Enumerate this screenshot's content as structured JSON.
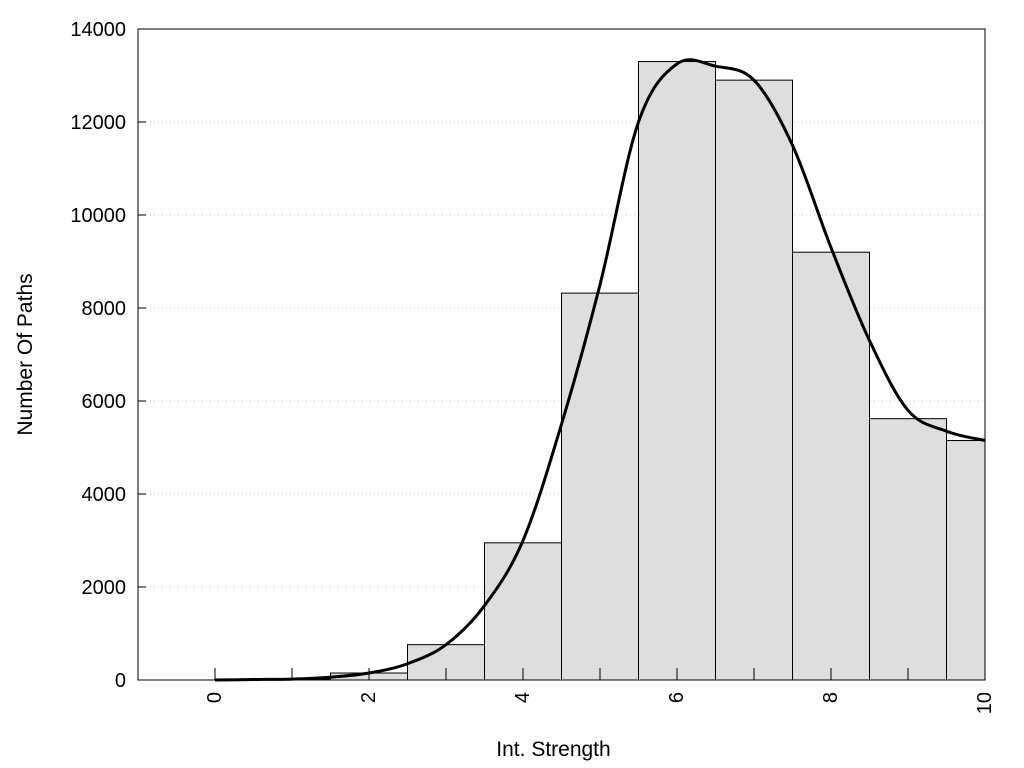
{
  "chart_data": {
    "type": "bar",
    "title": "",
    "xlabel": "Int. Strength",
    "ylabel": "Number Of Paths",
    "xlim": [
      -1,
      10
    ],
    "ylim": [
      0,
      14000
    ],
    "xticks": [
      0,
      2,
      4,
      6,
      8,
      10
    ],
    "yticks": [
      0,
      2000,
      4000,
      6000,
      8000,
      10000,
      12000,
      14000
    ],
    "grid": "horizontal-dotted",
    "legend": "none",
    "bar_width": 1,
    "bar_color": "#dedede",
    "line_color": "#000000",
    "bars": [
      {
        "x": 0,
        "value": 0
      },
      {
        "x": 1,
        "value": 20
      },
      {
        "x": 2,
        "value": 150
      },
      {
        "x": 3,
        "value": 760
      },
      {
        "x": 4,
        "value": 2950
      },
      {
        "x": 5,
        "value": 8320
      },
      {
        "x": 6,
        "value": 13300
      },
      {
        "x": 7,
        "value": 12900
      },
      {
        "x": 8,
        "value": 9200
      },
      {
        "x": 9,
        "value": 5620
      },
      {
        "x": 10,
        "value": 5150
      }
    ],
    "curve": {
      "x": [
        0,
        0.5,
        1,
        1.5,
        2,
        2.5,
        3,
        3.5,
        4,
        4.5,
        5,
        5.5,
        6,
        6.5,
        7,
        7.5,
        8,
        8.5,
        9,
        9.5,
        10
      ],
      "y": [
        0,
        10,
        20,
        60,
        150,
        350,
        760,
        1600,
        3000,
        5500,
        8500,
        12000,
        13250,
        13200,
        12900,
        11500,
        9300,
        7300,
        5800,
        5350,
        5150
      ]
    }
  }
}
